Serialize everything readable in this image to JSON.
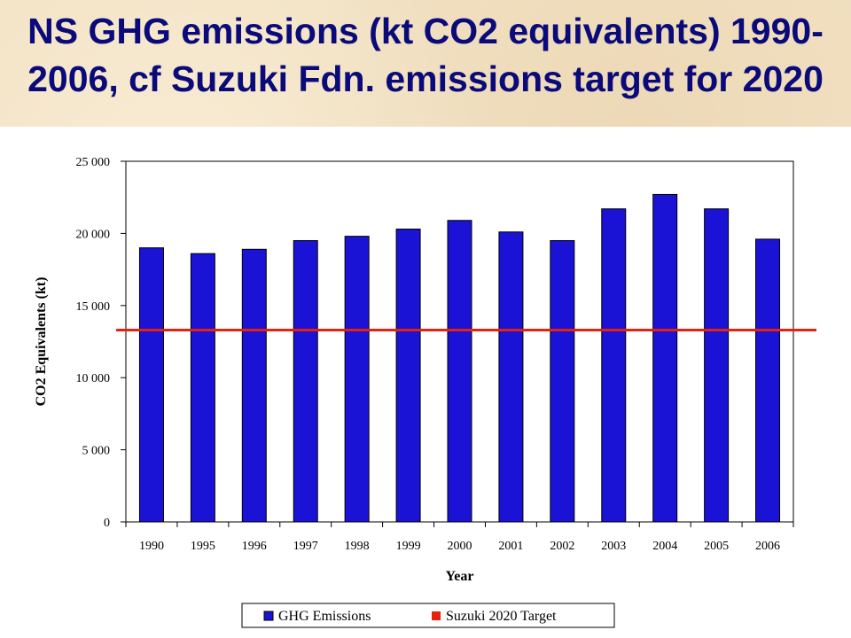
{
  "slide": {
    "title_line1": "NS GHG emissions (kt CO2 equivalents) 1990-",
    "title_line2": "2006, cf Suzuki Fdn. emissions target for 2020"
  },
  "colors": {
    "bar": "#1a12d4",
    "target": "#e8210f",
    "title": "#0a0a7a"
  },
  "chart_data": {
    "type": "bar",
    "title": "",
    "xlabel": "Year",
    "ylabel": "CO2 Equivalents (kt)",
    "ylim": [
      0,
      25000
    ],
    "yticks": [
      0,
      5000,
      10000,
      15000,
      20000,
      25000
    ],
    "ytick_labels": [
      "0",
      "5 000",
      "10 000",
      "15 000",
      "20 000",
      "25 000"
    ],
    "categories": [
      "1990",
      "1995",
      "1996",
      "1997",
      "1998",
      "1999",
      "2000",
      "2001",
      "2002",
      "2003",
      "2004",
      "2005",
      "2006"
    ],
    "series": [
      {
        "name": "GHG Emissions",
        "type": "bar",
        "values": [
          19000,
          18600,
          18900,
          19500,
          19800,
          20300,
          20900,
          20100,
          19500,
          21700,
          22700,
          21700,
          19600
        ]
      },
      {
        "name": "Suzuki 2020 Target",
        "type": "line",
        "value": 13300
      }
    ],
    "grid": false,
    "legend": "bottom"
  }
}
